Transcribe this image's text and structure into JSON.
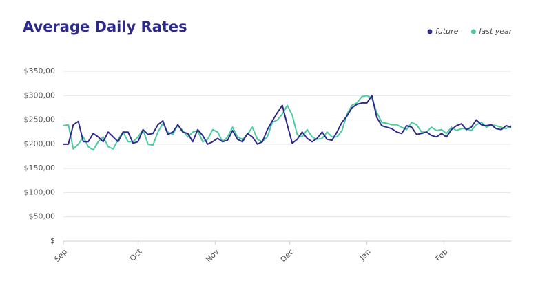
{
  "chart_data": {
    "type": "line",
    "title": "Average Daily Rates",
    "x": [
      0,
      2,
      4,
      6,
      8,
      10,
      12,
      14,
      16,
      18,
      20,
      22,
      24,
      26,
      28,
      30,
      32,
      34,
      36,
      38,
      40,
      42,
      44,
      46,
      48,
      50,
      52,
      54,
      56,
      58,
      60,
      62,
      64,
      66,
      68,
      70,
      72,
      74,
      76,
      78,
      80,
      82,
      84,
      86,
      88,
      90,
      92,
      94,
      96,
      98,
      100,
      102,
      104,
      106,
      108,
      110,
      112,
      114,
      116,
      118,
      120,
      122,
      124,
      126,
      128,
      130,
      132,
      134,
      136,
      138,
      140,
      142,
      144,
      146,
      148,
      150,
      152,
      154,
      156,
      158,
      160,
      162,
      164,
      166,
      168,
      170,
      172,
      174,
      176,
      178,
      180
    ],
    "xlim": [
      0,
      180
    ],
    "xticks": [
      {
        "value": 0,
        "label": "Sep"
      },
      {
        "value": 30,
        "label": "Oct"
      },
      {
        "value": 61,
        "label": "Nov"
      },
      {
        "value": 91,
        "label": "Dec"
      },
      {
        "value": 122,
        "label": "Jan"
      },
      {
        "value": 153,
        "label": "Feb"
      }
    ],
    "ylim": [
      0,
      350
    ],
    "yticks": [
      {
        "value": 0,
        "label": "$"
      },
      {
        "value": 50,
        "label": "$50,00"
      },
      {
        "value": 100,
        "label": "$100,00"
      },
      {
        "value": 150,
        "label": "$150,00"
      },
      {
        "value": 200,
        "label": "$200,00"
      },
      {
        "value": 250,
        "label": "$250,00"
      },
      {
        "value": 300,
        "label": "$300,00"
      },
      {
        "value": 350,
        "label": "$350,00"
      }
    ],
    "grid": true,
    "legend": "top-right",
    "series": [
      {
        "name": "future",
        "color": "#2e2a8c",
        "values": [
          200,
          200,
          240,
          247,
          205,
          205,
          222,
          215,
          205,
          225,
          215,
          205,
          225,
          225,
          202,
          205,
          230,
          220,
          222,
          240,
          248,
          220,
          225,
          240,
          225,
          222,
          205,
          230,
          218,
          200,
          205,
          212,
          205,
          208,
          228,
          210,
          205,
          222,
          215,
          200,
          205,
          230,
          248,
          265,
          280,
          240,
          202,
          210,
          225,
          212,
          205,
          212,
          225,
          210,
          208,
          225,
          245,
          258,
          275,
          282,
          285,
          285,
          300,
          255,
          238,
          235,
          232,
          225,
          222,
          238,
          235,
          220,
          222,
          225,
          218,
          215,
          222,
          215,
          230,
          238,
          242,
          230,
          235,
          250,
          240,
          238,
          240,
          232,
          230,
          238,
          235
        ]
      },
      {
        "name": "last year",
        "color": "#4cc9a0",
        "values": [
          238,
          240,
          190,
          200,
          215,
          195,
          188,
          205,
          215,
          195,
          190,
          210,
          225,
          205,
          205,
          215,
          230,
          200,
          198,
          225,
          243,
          225,
          220,
          240,
          228,
          215,
          225,
          228,
          205,
          210,
          230,
          225,
          205,
          215,
          235,
          215,
          210,
          220,
          235,
          210,
          205,
          215,
          245,
          250,
          262,
          280,
          260,
          220,
          215,
          230,
          215,
          210,
          212,
          225,
          215,
          215,
          228,
          262,
          280,
          285,
          298,
          300,
          295,
          265,
          245,
          243,
          240,
          240,
          235,
          230,
          245,
          240,
          225,
          225,
          235,
          228,
          230,
          222,
          235,
          228,
          232,
          232,
          228,
          240,
          245,
          235,
          240,
          238,
          235,
          232,
          238
        ]
      }
    ]
  }
}
